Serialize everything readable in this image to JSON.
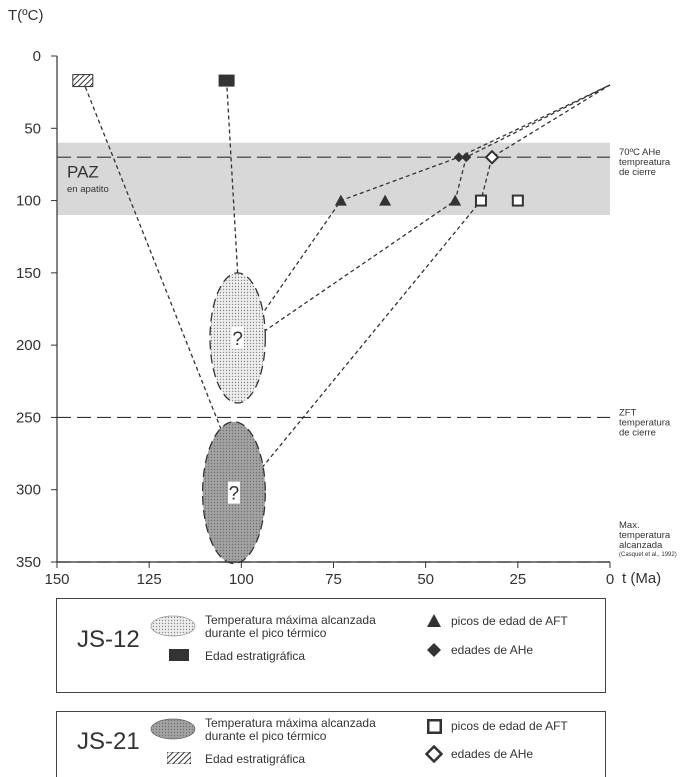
{
  "chart_data": {
    "type": "scatter",
    "title": "",
    "ylabel": "T(ºC)",
    "xlabel": "t (Ma)",
    "xlim": [
      150,
      0
    ],
    "ylim": [
      0,
      350
    ],
    "x_reversed": true,
    "y_inverted": true,
    "xticks": [
      150,
      125,
      100,
      75,
      50,
      25,
      0
    ],
    "yticks": [
      0,
      50,
      100,
      150,
      200,
      250,
      300,
      350
    ],
    "grid": false,
    "paz_band": {
      "label": "PAZ",
      "sublabel": "en apatito",
      "y_range": [
        60,
        110
      ]
    },
    "reference_lines": [
      {
        "y": 70,
        "label_lines": [
          "70ºC AHe",
          "tempreatura",
          "de cierre"
        ]
      },
      {
        "y": 250,
        "label_lines": [
          "ZFT",
          "temperatura",
          "de cierre"
        ]
      },
      {
        "y": 350,
        "label_lines": [
          "Max.",
          "temperatura",
          "alcanzada"
        ],
        "source": "(Casquet et al., 1992)"
      }
    ],
    "series": [
      {
        "name": "picos de edad de AFT",
        "sample": "JS-12",
        "marker": "filled-triangle",
        "points": [
          [
            73,
            100
          ],
          [
            61,
            100
          ],
          [
            42,
            100
          ]
        ]
      },
      {
        "name": "edades de AHe",
        "sample": "JS-12",
        "marker": "filled-diamond",
        "points": [
          [
            41,
            70
          ],
          [
            39,
            70
          ]
        ]
      },
      {
        "name": "Edad estratigráfica",
        "sample": "JS-12",
        "marker": "filled-rect",
        "points": [
          [
            104,
            17
          ]
        ]
      },
      {
        "name": "picos de edad de AFT",
        "sample": "JS-21",
        "marker": "open-square",
        "points": [
          [
            35,
            100
          ],
          [
            25,
            100
          ]
        ]
      },
      {
        "name": "edades de AHe",
        "sample": "JS-21",
        "marker": "open-diamond",
        "points": [
          [
            32,
            70
          ]
        ]
      },
      {
        "name": "Edad estratigráfica",
        "sample": "JS-21",
        "marker": "hatched-rect",
        "points": [
          [
            143,
            17
          ]
        ]
      }
    ],
    "ellipses": [
      {
        "sample": "JS-12",
        "cx": 101,
        "cy": 195,
        "rx": 7.5,
        "ry": 45,
        "fill": "dotted",
        "label": "?"
      },
      {
        "sample": "JS-21",
        "cx": 102,
        "cy": 302,
        "rx": 8.5,
        "ry": 49,
        "fill": "grey",
        "label": "?"
      }
    ],
    "paths": [
      {
        "sample": "JS-12",
        "points": [
          [
            104,
            17
          ],
          [
            101,
            150
          ]
        ]
      },
      {
        "sample": "JS-12",
        "points": [
          [
            98,
            192
          ],
          [
            73,
            100
          ],
          [
            41,
            70
          ],
          [
            0,
            20
          ]
        ]
      },
      {
        "sample": "JS-12",
        "points": [
          [
            97,
            196
          ],
          [
            42,
            100
          ],
          [
            39,
            70
          ],
          [
            0,
            20
          ]
        ]
      },
      {
        "sample": "JS-21",
        "points": [
          [
            143,
            17
          ],
          [
            99,
            300
          ]
        ]
      },
      {
        "sample": "JS-21",
        "points": [
          [
            98,
            296
          ],
          [
            35,
            100
          ],
          [
            32,
            70
          ],
          [
            0,
            20
          ]
        ]
      }
    ]
  },
  "legend": {
    "js12": {
      "id": "JS-12",
      "ellipse_label_1": "Temperatura máxima alcanzada",
      "ellipse_label_2": "durante el pico térmico",
      "strat_label": "Edad estratigráfica",
      "aft_label": "picos de edad de AFT",
      "ahe_label": "edades de AHe"
    },
    "js21": {
      "id": "JS-21",
      "ellipse_label_1": "Temperatura máxima alcanzada",
      "ellipse_label_2": "durante el pico térmico",
      "strat_label": "Edad estratigráfica",
      "aft_label": "picos de edad de AFT",
      "ahe_label": "edades de AHe"
    }
  },
  "colors": {
    "dark": "#333333",
    "band": "#d8d8d8",
    "ellipse_grey": "#9a9a9a",
    "ellipse_dotted": "#e6e6e6"
  }
}
